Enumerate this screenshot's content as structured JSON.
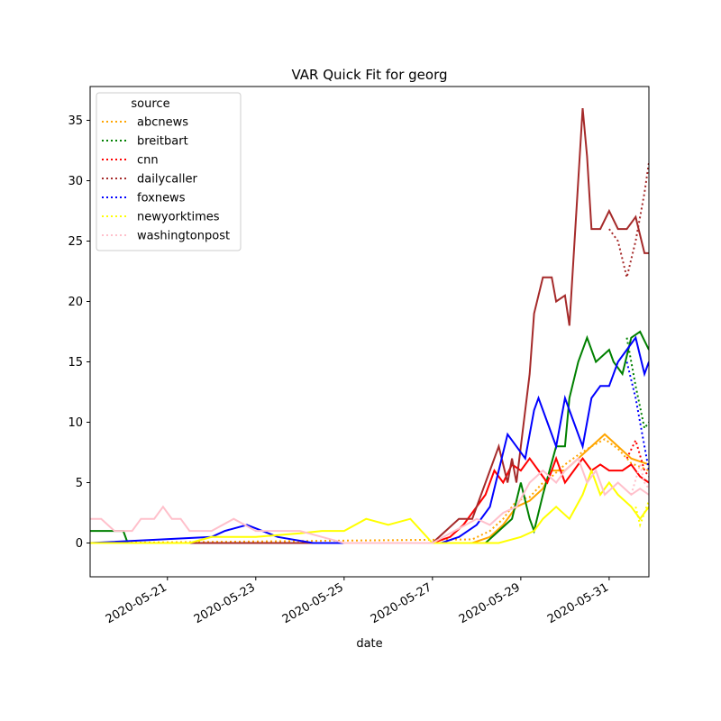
{
  "chart_data": {
    "type": "line",
    "title": "VAR Quick Fit for georg",
    "xlabel": "date",
    "ylabel": "",
    "xlim_days": [
      -1.75,
      10.9
    ],
    "ylim": [
      -2.8,
      37.8
    ],
    "grid": false,
    "x_ticks": [
      {
        "day": 0,
        "label": "2020-05-21"
      },
      {
        "day": 2,
        "label": "2020-05-23"
      },
      {
        "day": 4,
        "label": "2020-05-25"
      },
      {
        "day": 6,
        "label": "2020-05-27"
      },
      {
        "day": 8,
        "label": "2020-05-29"
      },
      {
        "day": 10,
        "label": "2020-05-31"
      }
    ],
    "y_ticks": [
      0,
      5,
      10,
      15,
      20,
      25,
      30,
      35
    ],
    "x_day_zero": "2020-05-21",
    "legend": {
      "title": "source",
      "position": "top-left"
    },
    "series": [
      {
        "name": "abcnews",
        "color": "#ffa500",
        "actual": [
          [
            -1.75,
            0
          ],
          [
            6.9,
            0
          ],
          [
            7.3,
            0.5
          ],
          [
            7.6,
            1.5
          ],
          [
            7.9,
            3
          ],
          [
            8.2,
            3.5
          ],
          [
            8.5,
            4.5
          ],
          [
            8.7,
            6
          ],
          [
            9.0,
            6
          ],
          [
            9.3,
            7
          ],
          [
            9.6,
            8
          ],
          [
            9.9,
            9
          ],
          [
            10.2,
            8
          ],
          [
            10.5,
            7
          ],
          [
            10.9,
            6.5
          ]
        ],
        "fitted": [
          [
            -1.75,
            0
          ],
          [
            6.9,
            0.3
          ],
          [
            7.3,
            1
          ],
          [
            7.6,
            2
          ],
          [
            7.9,
            3.5
          ],
          [
            8.2,
            3.8
          ],
          [
            8.5,
            5
          ],
          [
            8.7,
            5.5
          ],
          [
            9.0,
            6.5
          ],
          [
            9.3,
            7.3
          ],
          [
            9.6,
            8
          ],
          [
            9.9,
            8.6
          ],
          [
            10.2,
            7.8
          ],
          [
            10.5,
            6.6
          ],
          [
            10.9,
            6
          ]
        ]
      },
      {
        "name": "breitbart",
        "color": "#008000",
        "actual": [
          [
            -1.75,
            1
          ],
          [
            -1.0,
            1
          ],
          [
            -0.9,
            0
          ],
          [
            7.2,
            0
          ],
          [
            7.5,
            1
          ],
          [
            7.8,
            2
          ],
          [
            8.0,
            5
          ],
          [
            8.2,
            2
          ],
          [
            8.3,
            1
          ],
          [
            8.5,
            4
          ],
          [
            8.8,
            8
          ],
          [
            9.0,
            8
          ],
          [
            9.1,
            12
          ],
          [
            9.3,
            15
          ],
          [
            9.5,
            17
          ],
          [
            9.7,
            15
          ],
          [
            10.0,
            16
          ],
          [
            10.1,
            15
          ],
          [
            10.3,
            14
          ],
          [
            10.5,
            17
          ],
          [
            10.7,
            17.5
          ],
          [
            10.9,
            16
          ]
        ],
        "fitted": [
          [
            10.4,
            17
          ],
          [
            10.6,
            13
          ],
          [
            10.8,
            9.5
          ],
          [
            10.9,
            10
          ]
        ]
      },
      {
        "name": "cnn",
        "color": "#ff0000",
        "actual": [
          [
            -1.75,
            0
          ],
          [
            6.0,
            0
          ],
          [
            6.4,
            0.5
          ],
          [
            6.7,
            1.5
          ],
          [
            6.9,
            2.5
          ],
          [
            7.2,
            4
          ],
          [
            7.4,
            6
          ],
          [
            7.6,
            5
          ],
          [
            7.8,
            6.5
          ],
          [
            8.0,
            6
          ],
          [
            8.2,
            7
          ],
          [
            8.4,
            6
          ],
          [
            8.6,
            5
          ],
          [
            8.8,
            7
          ],
          [
            9.0,
            5
          ],
          [
            9.2,
            6
          ],
          [
            9.4,
            7
          ],
          [
            9.6,
            6
          ],
          [
            9.8,
            6.5
          ],
          [
            10.0,
            6
          ],
          [
            10.3,
            6
          ],
          [
            10.5,
            6.5
          ],
          [
            10.7,
            5.5
          ],
          [
            10.9,
            5
          ]
        ],
        "fitted": [
          [
            10.4,
            7
          ],
          [
            10.6,
            8.5
          ],
          [
            10.8,
            6
          ],
          [
            10.9,
            5.5
          ]
        ]
      },
      {
        "name": "dailycaller",
        "color": "#a52a2a",
        "actual": [
          [
            -1.75,
            0
          ],
          [
            6.0,
            0
          ],
          [
            6.3,
            1
          ],
          [
            6.6,
            2
          ],
          [
            6.9,
            2
          ],
          [
            7.0,
            3
          ],
          [
            7.3,
            6
          ],
          [
            7.5,
            8
          ],
          [
            7.7,
            5
          ],
          [
            7.8,
            7
          ],
          [
            7.9,
            5
          ],
          [
            8.2,
            14
          ],
          [
            8.3,
            19
          ],
          [
            8.5,
            22
          ],
          [
            8.7,
            22
          ],
          [
            8.8,
            20
          ],
          [
            9.0,
            20.5
          ],
          [
            9.1,
            18
          ],
          [
            9.3,
            30
          ],
          [
            9.4,
            36
          ],
          [
            9.5,
            32
          ],
          [
            9.6,
            26
          ],
          [
            9.8,
            26
          ],
          [
            10.0,
            27.5
          ],
          [
            10.2,
            26
          ],
          [
            10.4,
            26
          ],
          [
            10.6,
            27
          ],
          [
            10.8,
            24
          ],
          [
            10.9,
            24
          ]
        ],
        "fitted": [
          [
            10.0,
            26
          ],
          [
            10.2,
            25
          ],
          [
            10.4,
            22
          ],
          [
            10.6,
            25
          ],
          [
            10.7,
            27
          ],
          [
            10.8,
            29
          ],
          [
            10.9,
            31.5
          ]
        ]
      },
      {
        "name": "foxnews",
        "color": "#0000ff",
        "actual": [
          [
            -1.75,
            0
          ],
          [
            1.0,
            0.5
          ],
          [
            1.3,
            1
          ],
          [
            1.8,
            1.5
          ],
          [
            2.5,
            0.5
          ],
          [
            3.3,
            0
          ],
          [
            6.2,
            0
          ],
          [
            6.6,
            0.5
          ],
          [
            7.0,
            1.5
          ],
          [
            7.3,
            3
          ],
          [
            7.5,
            6
          ],
          [
            7.7,
            9
          ],
          [
            7.9,
            8
          ],
          [
            8.1,
            7
          ],
          [
            8.3,
            11
          ],
          [
            8.4,
            12
          ],
          [
            8.6,
            10
          ],
          [
            8.8,
            8
          ],
          [
            9.0,
            12
          ],
          [
            9.2,
            10
          ],
          [
            9.4,
            8
          ],
          [
            9.6,
            12
          ],
          [
            9.8,
            13
          ],
          [
            10.0,
            13
          ],
          [
            10.2,
            15
          ],
          [
            10.4,
            16
          ],
          [
            10.6,
            17
          ],
          [
            10.8,
            14
          ],
          [
            10.9,
            15
          ]
        ],
        "fitted": [
          [
            10.4,
            15
          ],
          [
            10.6,
            12
          ],
          [
            10.8,
            8
          ],
          [
            10.9,
            6
          ]
        ]
      },
      {
        "name": "newyorktimes",
        "color": "#ffff00",
        "actual": [
          [
            -1.75,
            0
          ],
          [
            0.5,
            0
          ],
          [
            1.0,
            0.5
          ],
          [
            2.0,
            0.5
          ],
          [
            3.0,
            0.8
          ],
          [
            3.5,
            1
          ],
          [
            4.0,
            1
          ],
          [
            4.5,
            2
          ],
          [
            5.0,
            1.5
          ],
          [
            5.5,
            2
          ],
          [
            6.0,
            0
          ],
          [
            7.0,
            0
          ],
          [
            7.5,
            0
          ],
          [
            8.0,
            0.5
          ],
          [
            8.3,
            1
          ],
          [
            8.5,
            2
          ],
          [
            8.8,
            3
          ],
          [
            9.1,
            2
          ],
          [
            9.4,
            4
          ],
          [
            9.6,
            6
          ],
          [
            9.8,
            4
          ],
          [
            10.0,
            5
          ],
          [
            10.2,
            4
          ],
          [
            10.5,
            3
          ],
          [
            10.7,
            2
          ],
          [
            10.9,
            3
          ]
        ],
        "fitted": [
          [
            10.6,
            3
          ],
          [
            10.7,
            1.5
          ],
          [
            10.8,
            2.5
          ],
          [
            10.9,
            3.5
          ]
        ]
      },
      {
        "name": "washingtonpost",
        "color": "#ffc0cb",
        "actual": [
          [
            -1.75,
            2
          ],
          [
            -1.5,
            2
          ],
          [
            -1.2,
            1
          ],
          [
            -0.8,
            1
          ],
          [
            -0.6,
            2
          ],
          [
            -0.3,
            2
          ],
          [
            -0.1,
            3
          ],
          [
            0.1,
            2
          ],
          [
            0.3,
            2
          ],
          [
            0.5,
            1
          ],
          [
            1.0,
            1
          ],
          [
            1.5,
            2
          ],
          [
            2.0,
            1
          ],
          [
            3.0,
            1
          ],
          [
            3.5,
            0.5
          ],
          [
            4.0,
            0
          ],
          [
            6.0,
            0
          ],
          [
            6.5,
            1
          ],
          [
            7.0,
            2
          ],
          [
            7.3,
            1.5
          ],
          [
            7.6,
            2.5
          ],
          [
            7.9,
            3
          ],
          [
            8.2,
            5
          ],
          [
            8.5,
            6
          ],
          [
            8.8,
            5
          ],
          [
            9.0,
            6
          ],
          [
            9.3,
            7
          ],
          [
            9.5,
            5
          ],
          [
            9.7,
            6
          ],
          [
            9.9,
            4
          ],
          [
            10.2,
            5
          ],
          [
            10.5,
            4
          ],
          [
            10.7,
            4.5
          ],
          [
            10.9,
            4
          ]
        ],
        "fitted": [
          [
            10.5,
            4
          ],
          [
            10.7,
            6.5
          ],
          [
            10.8,
            5
          ],
          [
            10.9,
            4.5
          ]
        ]
      }
    ]
  }
}
